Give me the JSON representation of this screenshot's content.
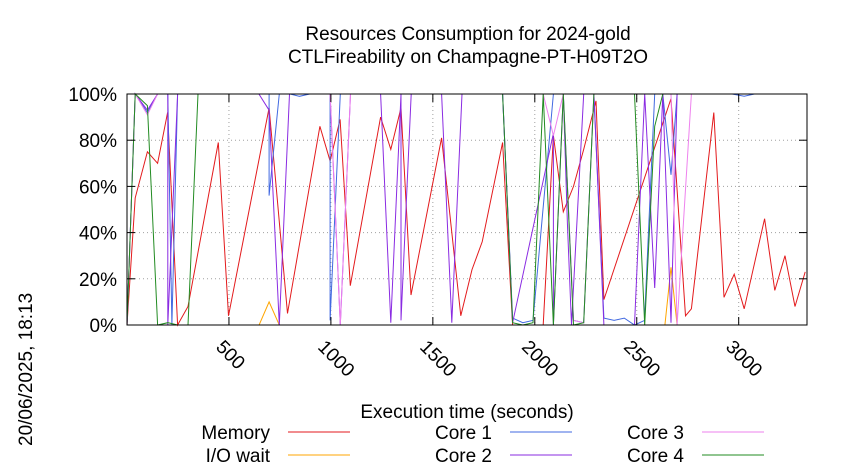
{
  "chart_data": {
    "type": "line",
    "title": "Resources Consumption for 2024-gold",
    "subtitle": "CTLFireability on Champagne-PT-H09T2O",
    "xlabel": "Execution time (seconds)",
    "ylabel": "",
    "side_label": "20/06/2025, 18:13",
    "xlim": [
      0,
      3335
    ],
    "ylim": [
      0,
      100
    ],
    "xticks": [
      {
        "value": 500,
        "label": "500"
      },
      {
        "value": 1000,
        "label": "1000"
      },
      {
        "value": 1500,
        "label": "1500"
      },
      {
        "value": 2000,
        "label": "2000"
      },
      {
        "value": 2500,
        "label": "2500"
      },
      {
        "value": 3000,
        "label": "3000"
      }
    ],
    "yticks": [
      {
        "value": 0,
        "label": "0%"
      },
      {
        "value": 20,
        "label": "20%"
      },
      {
        "value": 40,
        "label": "40%"
      },
      {
        "value": 60,
        "label": "60%"
      },
      {
        "value": 80,
        "label": "80%"
      },
      {
        "value": 100,
        "label": "100%"
      }
    ],
    "grid": true,
    "legend_position": "bottom",
    "series": [
      {
        "name": "Memory",
        "color": "#e31a1c",
        "points": [
          [
            0,
            0
          ],
          [
            40,
            55
          ],
          [
            100,
            75
          ],
          [
            150,
            70
          ],
          [
            199,
            92
          ],
          [
            248,
            0
          ],
          [
            299,
            8
          ],
          [
            448,
            79
          ],
          [
            498,
            4
          ],
          [
            697,
            94
          ],
          [
            787,
            5
          ],
          [
            946,
            86
          ],
          [
            996,
            71
          ],
          [
            1045,
            89
          ],
          [
            1095,
            17
          ],
          [
            1244,
            90
          ],
          [
            1294,
            76
          ],
          [
            1344,
            94
          ],
          [
            1393,
            13
          ],
          [
            1543,
            81
          ],
          [
            1637,
            4
          ],
          [
            1692,
            24
          ],
          [
            1742,
            36
          ],
          [
            1842,
            79
          ],
          [
            1891,
            0
          ],
          [
            1941,
            0
          ],
          [
            1991,
            0
          ],
          [
            2041,
            0
          ],
          [
            2091,
            82
          ],
          [
            2140,
            49
          ],
          [
            2190,
            60
          ],
          [
            2240,
            76
          ],
          [
            2300,
            97
          ],
          [
            2339,
            11
          ],
          [
            2668,
            98
          ],
          [
            2739,
            4
          ],
          [
            2768,
            7
          ],
          [
            2878,
            92
          ],
          [
            2928,
            12
          ],
          [
            2978,
            22
          ],
          [
            3027,
            7
          ],
          [
            3127,
            46
          ],
          [
            3177,
            15
          ],
          [
            3227,
            30
          ],
          [
            3276,
            8
          ],
          [
            3326,
            23
          ]
        ]
      },
      {
        "name": "I/O wait",
        "color": "#ffa500",
        "points": [
          [
            0,
            0
          ],
          [
            648,
            0
          ],
          [
            697,
            10
          ],
          [
            747,
            0
          ],
          [
            2638,
            0
          ],
          [
            2668,
            25
          ],
          [
            2698,
            0
          ],
          [
            3326,
            0
          ]
        ]
      },
      {
        "name": "Core 1",
        "color": "#4169e1",
        "points": [
          [
            0,
            0
          ],
          [
            40,
            100
          ],
          [
            100,
            92
          ],
          [
            150,
            100
          ],
          [
            200,
            100
          ],
          [
            220,
            0
          ],
          [
            248,
            100
          ],
          [
            697,
            100
          ],
          [
            697,
            56
          ],
          [
            747,
            100
          ],
          [
            800,
            100
          ],
          [
            846,
            99
          ],
          [
            896,
            100
          ],
          [
            946,
            100
          ],
          [
            996,
            100
          ],
          [
            996,
            2
          ],
          [
            1046,
            100
          ],
          [
            1095,
            100
          ],
          [
            1244,
            100
          ],
          [
            1344,
            100
          ],
          [
            1394,
            100
          ],
          [
            1842,
            100
          ],
          [
            1891,
            3
          ],
          [
            1941,
            1
          ],
          [
            1991,
            2
          ],
          [
            2091,
            100
          ],
          [
            2140,
            100
          ],
          [
            2190,
            2
          ],
          [
            2240,
            1
          ],
          [
            2290,
            100
          ],
          [
            2339,
            3
          ],
          [
            2389,
            2
          ],
          [
            2439,
            3
          ],
          [
            2489,
            0
          ],
          [
            2538,
            2
          ],
          [
            2588,
            100
          ],
          [
            2628,
            100
          ],
          [
            2668,
            65
          ],
          [
            2698,
            100
          ],
          [
            2768,
            100
          ],
          [
            2968,
            100
          ],
          [
            3027,
            99
          ],
          [
            3077,
            100
          ],
          [
            3326,
            100
          ]
        ]
      },
      {
        "name": "Core 2",
        "color": "#8a2be2",
        "points": [
          [
            0,
            0
          ],
          [
            40,
            100
          ],
          [
            100,
            93
          ],
          [
            150,
            100
          ],
          [
            200,
            100
          ],
          [
            200,
            0
          ],
          [
            248,
            100
          ],
          [
            647,
            100
          ],
          [
            697,
            93
          ],
          [
            747,
            0
          ],
          [
            797,
            100
          ],
          [
            996,
            100
          ],
          [
            1046,
            0
          ],
          [
            1096,
            100
          ],
          [
            1244,
            100
          ],
          [
            1294,
            1
          ],
          [
            1344,
            100
          ],
          [
            1344,
            2
          ],
          [
            1394,
            100
          ],
          [
            1543,
            100
          ],
          [
            1593,
            1
          ],
          [
            1643,
            100
          ],
          [
            1842,
            100
          ],
          [
            1891,
            1
          ],
          [
            2091,
            83
          ],
          [
            2091,
            0
          ],
          [
            2140,
            100
          ],
          [
            2160,
            44
          ],
          [
            2180,
            0
          ],
          [
            2240,
            100
          ],
          [
            2290,
            100
          ],
          [
            2339,
            0
          ],
          [
            2489,
            0
          ],
          [
            2539,
            100
          ],
          [
            2588,
            16
          ],
          [
            2628,
            100
          ],
          [
            2668,
            1
          ],
          [
            2698,
            100
          ],
          [
            2768,
            100
          ],
          [
            3326,
            100
          ]
        ]
      },
      {
        "name": "Core 3",
        "color": "#ee82ee",
        "points": [
          [
            0,
            0
          ],
          [
            40,
            100
          ],
          [
            100,
            91
          ],
          [
            150,
            100
          ],
          [
            200,
            100
          ],
          [
            220,
            100
          ],
          [
            248,
            100
          ],
          [
            697,
            100
          ],
          [
            747,
            100
          ],
          [
            996,
            100
          ],
          [
            1046,
            0
          ],
          [
            1096,
            100
          ],
          [
            1344,
            100
          ],
          [
            1394,
            100
          ],
          [
            1842,
            100
          ],
          [
            1891,
            100
          ],
          [
            2041,
            100
          ],
          [
            2091,
            82
          ],
          [
            2140,
            100
          ],
          [
            2190,
            2
          ],
          [
            2240,
            1
          ],
          [
            2290,
            100
          ],
          [
            2489,
            100
          ],
          [
            2539,
            100
          ],
          [
            2628,
            100
          ],
          [
            2668,
            100
          ],
          [
            2698,
            0
          ],
          [
            2768,
            100
          ],
          [
            3326,
            100
          ]
        ]
      },
      {
        "name": "Core 4",
        "color": "#228b22",
        "points": [
          [
            0,
            0
          ],
          [
            40,
            100
          ],
          [
            100,
            95
          ],
          [
            150,
            0
          ],
          [
            200,
            1
          ],
          [
            248,
            0
          ],
          [
            299,
            0
          ],
          [
            348,
            100
          ],
          [
            697,
            100
          ],
          [
            747,
            100
          ],
          [
            996,
            100
          ],
          [
            1294,
            100
          ],
          [
            1842,
            100
          ],
          [
            1891,
            1
          ],
          [
            1941,
            0
          ],
          [
            1991,
            1
          ],
          [
            2041,
            100
          ],
          [
            2091,
            0
          ],
          [
            2140,
            100
          ],
          [
            2190,
            0
          ],
          [
            2240,
            1
          ],
          [
            2290,
            100
          ],
          [
            2489,
            100
          ],
          [
            2539,
            0
          ],
          [
            2588,
            86
          ],
          [
            2628,
            100
          ],
          [
            2668,
            100
          ],
          [
            2698,
            100
          ],
          [
            3326,
            100
          ]
        ]
      }
    ]
  }
}
